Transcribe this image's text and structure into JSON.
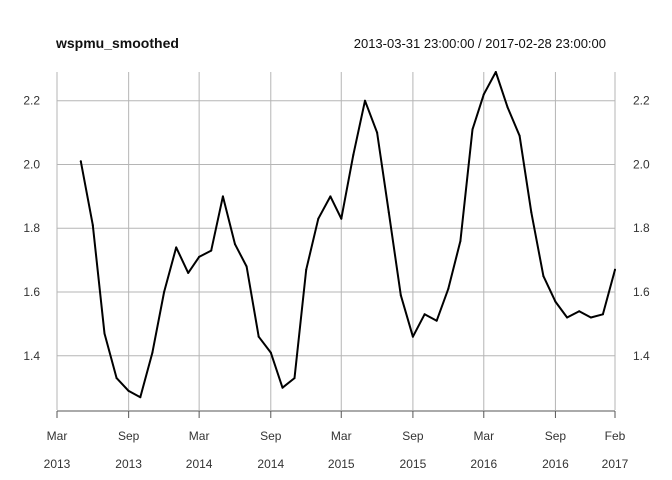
{
  "header": {
    "title": "wspmu_smoothed",
    "date_range": "2013-03-31 23:00:00 / 2017-02-28 23:00:00"
  },
  "chart_data": {
    "type": "line",
    "title": "wspmu_smoothed",
    "subtitle": "2013-03-31 23:00:00 / 2017-02-28 23:00:00",
    "xlabel": "",
    "ylabel": "",
    "grid": true,
    "xlim": [
      "2013-03-01",
      "2017-02-01"
    ],
    "ylim": [
      1.23,
      2.29
    ],
    "x_ticks": [
      {
        "date": "2013-03-01",
        "month": "Mar",
        "year": "2013"
      },
      {
        "date": "2013-09-01",
        "month": "Sep",
        "year": "2013"
      },
      {
        "date": "2014-03-01",
        "month": "Mar",
        "year": "2014"
      },
      {
        "date": "2014-09-01",
        "month": "Sep",
        "year": "2014"
      },
      {
        "date": "2015-03-01",
        "month": "Mar",
        "year": "2015"
      },
      {
        "date": "2015-09-01",
        "month": "Sep",
        "year": "2015"
      },
      {
        "date": "2016-03-01",
        "month": "Mar",
        "year": "2016"
      },
      {
        "date": "2016-09-01",
        "month": "Sep",
        "year": "2016"
      },
      {
        "date": "2017-02-01",
        "month": "Feb",
        "year": "2017"
      }
    ],
    "y_ticks": [
      "1.4",
      "1.6",
      "1.8",
      "2.0",
      "2.2"
    ],
    "series": [
      {
        "color": "#000000",
        "x": [
          "2013-05-01",
          "2013-06-01",
          "2013-07-01",
          "2013-08-01",
          "2013-09-01",
          "2013-10-01",
          "2013-11-01",
          "2013-12-01",
          "2014-01-01",
          "2014-02-01",
          "2014-03-01",
          "2014-04-01",
          "2014-05-01",
          "2014-06-01",
          "2014-07-01",
          "2014-08-01",
          "2014-09-01",
          "2014-10-01",
          "2014-11-01",
          "2014-12-01",
          "2015-01-01",
          "2015-02-01",
          "2015-03-01",
          "2015-04-01",
          "2015-05-01",
          "2015-06-01",
          "2015-07-01",
          "2015-08-01",
          "2015-09-01",
          "2015-10-01",
          "2015-11-01",
          "2015-12-01",
          "2016-01-01",
          "2016-02-01",
          "2016-03-01",
          "2016-04-01",
          "2016-05-01",
          "2016-06-01",
          "2016-07-01",
          "2016-08-01",
          "2016-09-01",
          "2016-10-01",
          "2016-11-01",
          "2016-12-01",
          "2017-01-01",
          "2017-02-01"
        ],
        "values": [
          2.01,
          1.81,
          1.47,
          1.33,
          1.29,
          1.27,
          1.41,
          1.6,
          1.74,
          1.66,
          1.71,
          1.73,
          1.9,
          1.75,
          1.68,
          1.46,
          1.41,
          1.3,
          1.33,
          1.67,
          1.83,
          1.9,
          1.83,
          2.03,
          2.2,
          2.1,
          1.85,
          1.59,
          1.46,
          1.53,
          1.51,
          1.61,
          1.76,
          2.11,
          2.22,
          2.29,
          2.18,
          2.09,
          1.85,
          1.65,
          1.57,
          1.52,
          1.54,
          1.52,
          1.53,
          1.67
        ]
      }
    ]
  }
}
